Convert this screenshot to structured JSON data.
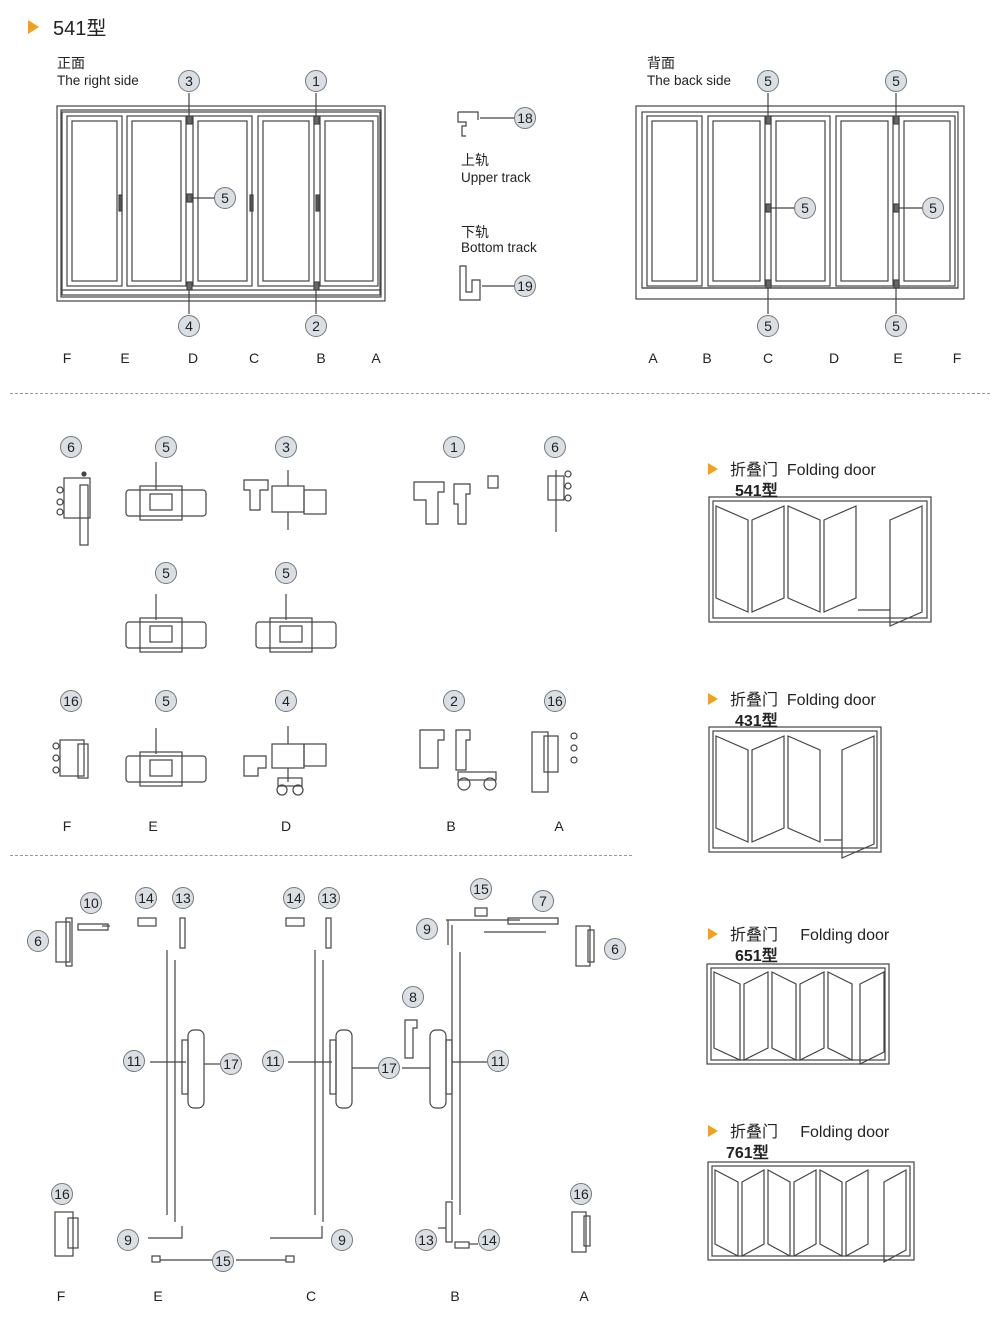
{
  "header": {
    "title": "541型"
  },
  "front": {
    "label_cn": "正面",
    "label_en": "The right side",
    "letters": [
      "F",
      "E",
      "D",
      "C",
      "B",
      "A"
    ]
  },
  "back": {
    "label_cn": "背面",
    "label_en": "The back side",
    "letters": [
      "A",
      "B",
      "C",
      "D",
      "E",
      "F"
    ]
  },
  "tracks": {
    "upper_cn": "上轨",
    "upper_en": "Upper track",
    "bottom_cn": "下轨",
    "bottom_en": "Bottom track"
  },
  "callouts": {
    "front": [
      "3",
      "1",
      "5",
      "4",
      "2"
    ],
    "back": [
      "5",
      "5",
      "5",
      "5",
      "5",
      "5"
    ],
    "tracks": [
      "18",
      "19"
    ],
    "parts_row1": [
      "6",
      "5",
      "3",
      "1",
      "6"
    ],
    "parts_row2": [
      "5",
      "5"
    ],
    "parts_row3": [
      "16",
      "5",
      "4",
      "2",
      "16"
    ],
    "bottom": [
      "10",
      "6",
      "14",
      "13",
      "14",
      "13",
      "15",
      "7",
      "9",
      "6",
      "8",
      "11",
      "17",
      "11",
      "17",
      "11",
      "16",
      "9",
      "15",
      "9",
      "13",
      "14",
      "16"
    ]
  },
  "parts_letters": [
    "F",
    "E",
    "D",
    "B",
    "A"
  ],
  "bottom_letters": [
    "F",
    "E",
    "C",
    "B",
    "A"
  ],
  "folding_doors": [
    {
      "cn": "折叠门",
      "en": "Folding door",
      "model": "541型"
    },
    {
      "cn": "折叠门",
      "en": "Folding door",
      "model": "431型"
    },
    {
      "cn": "折叠门",
      "en": "Folding door",
      "model": "651型"
    },
    {
      "cn": "折叠门",
      "en": "Folding door",
      "model": "761型"
    }
  ],
  "colors": {
    "accent": "#f4a01c",
    "callout_fill": "#d9dfe4",
    "line": "#444444"
  }
}
